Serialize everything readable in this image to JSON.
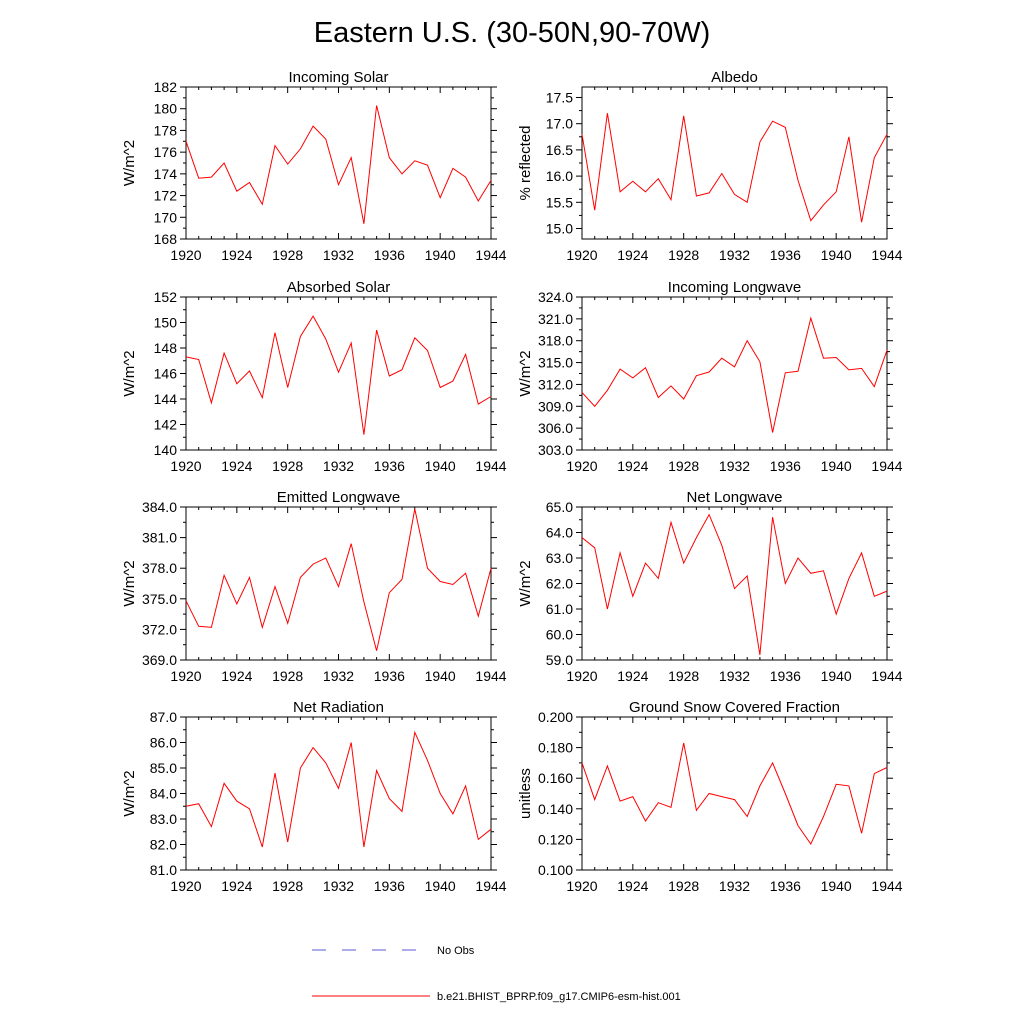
{
  "figure": {
    "title": "Eastern U.S. (30-50N,90-70W)"
  },
  "legend": {
    "items": [
      {
        "label": "No Obs",
        "color": "#5a5ad6",
        "style": "dashed"
      },
      {
        "label": "b.e21.BHIST_BPRP.f09_g17.CMIP6-esm-hist.001",
        "color": "#ff0000",
        "style": "solid"
      }
    ]
  },
  "chart_data": [
    {
      "type": "line",
      "title": "Incoming Solar",
      "ylabel": "W/m^2",
      "xlim": [
        1920,
        1944
      ],
      "ylim": [
        168,
        182
      ],
      "xticks": [
        1920,
        1924,
        1928,
        1932,
        1936,
        1940,
        1944
      ],
      "yticks": [
        "168",
        "170",
        "172",
        "174",
        "176",
        "178",
        "180",
        "182"
      ],
      "series": [
        {
          "color": "#ff0000",
          "x": [
            1920,
            1921,
            1922,
            1923,
            1924,
            1925,
            1926,
            1927,
            1928,
            1929,
            1930,
            1931,
            1932,
            1933,
            1934,
            1935,
            1936,
            1937,
            1938,
            1939,
            1940,
            1941,
            1942,
            1943,
            1944
          ],
          "values": [
            177.0,
            173.6,
            173.7,
            175.0,
            172.4,
            173.2,
            171.2,
            176.6,
            174.9,
            176.3,
            178.4,
            177.2,
            173.0,
            175.5,
            169.4,
            180.3,
            175.5,
            174.0,
            175.2,
            174.8,
            171.8,
            174.5,
            173.7,
            171.5,
            173.4
          ]
        }
      ]
    },
    {
      "type": "line",
      "title": "Albedo",
      "ylabel": "% reflected",
      "xlim": [
        1920,
        1944
      ],
      "ylim": [
        14.8,
        17.7
      ],
      "xticks": [
        1920,
        1924,
        1928,
        1932,
        1936,
        1940,
        1944
      ],
      "yticks": [
        "15.0",
        "15.5",
        "16.0",
        "16.5",
        "17.0",
        "17.5"
      ],
      "series": [
        {
          "color": "#ff0000",
          "x": [
            1920,
            1921,
            1922,
            1923,
            1924,
            1925,
            1926,
            1927,
            1928,
            1929,
            1930,
            1931,
            1932,
            1933,
            1934,
            1935,
            1936,
            1937,
            1938,
            1939,
            1940,
            1941,
            1942,
            1943,
            1944
          ],
          "values": [
            16.8,
            15.35,
            17.2,
            15.7,
            15.9,
            15.7,
            15.95,
            15.55,
            17.15,
            15.62,
            15.68,
            16.05,
            15.65,
            15.5,
            16.65,
            17.05,
            16.93,
            15.92,
            15.15,
            15.45,
            15.7,
            16.75,
            15.12,
            16.35,
            16.8
          ]
        }
      ]
    },
    {
      "type": "line",
      "title": "Absorbed Solar",
      "ylabel": "W/m^2",
      "xlim": [
        1920,
        1944
      ],
      "ylim": [
        140,
        152
      ],
      "xticks": [
        1920,
        1924,
        1928,
        1932,
        1936,
        1940,
        1944
      ],
      "yticks": [
        "140",
        "142",
        "144",
        "146",
        "148",
        "150",
        "152"
      ],
      "series": [
        {
          "color": "#ff0000",
          "x": [
            1920,
            1921,
            1922,
            1923,
            1924,
            1925,
            1926,
            1927,
            1928,
            1929,
            1930,
            1931,
            1932,
            1933,
            1934,
            1935,
            1936,
            1937,
            1938,
            1939,
            1940,
            1941,
            1942,
            1943,
            1944
          ],
          "values": [
            147.3,
            147.1,
            143.7,
            147.6,
            145.2,
            146.2,
            144.1,
            149.2,
            144.9,
            148.9,
            150.5,
            148.7,
            146.1,
            148.4,
            141.2,
            149.4,
            145.8,
            146.3,
            148.8,
            147.8,
            144.9,
            145.4,
            147.5,
            143.6,
            144.2
          ]
        }
      ]
    },
    {
      "type": "line",
      "title": "Incoming Longwave",
      "ylabel": "W/m^2",
      "xlim": [
        1920,
        1944
      ],
      "ylim": [
        303,
        324
      ],
      "xticks": [
        1920,
        1924,
        1928,
        1932,
        1936,
        1940,
        1944
      ],
      "yticks": [
        "303.0",
        "306.0",
        "309.0",
        "312.0",
        "315.0",
        "318.0",
        "321.0",
        "324.0"
      ],
      "series": [
        {
          "color": "#ff0000",
          "x": [
            1920,
            1921,
            1922,
            1923,
            1924,
            1925,
            1926,
            1927,
            1928,
            1929,
            1930,
            1931,
            1932,
            1933,
            1934,
            1935,
            1936,
            1937,
            1938,
            1939,
            1940,
            1941,
            1942,
            1943,
            1944
          ],
          "values": [
            310.9,
            309.0,
            311.2,
            314.1,
            312.9,
            314.3,
            310.2,
            311.8,
            310.0,
            313.2,
            313.7,
            315.6,
            314.4,
            318.0,
            315.1,
            305.4,
            313.6,
            313.8,
            321.1,
            315.6,
            315.7,
            314.0,
            314.2,
            311.7,
            316.7
          ]
        }
      ]
    },
    {
      "type": "line",
      "title": "Emitted Longwave",
      "ylabel": "W/m^2",
      "xlim": [
        1920,
        1944
      ],
      "ylim": [
        369,
        384
      ],
      "xticks": [
        1920,
        1924,
        1928,
        1932,
        1936,
        1940,
        1944
      ],
      "yticks": [
        "369.0",
        "372.0",
        "375.0",
        "378.0",
        "381.0",
        "384.0"
      ],
      "series": [
        {
          "color": "#ff0000",
          "x": [
            1920,
            1921,
            1922,
            1923,
            1924,
            1925,
            1926,
            1927,
            1928,
            1929,
            1930,
            1931,
            1932,
            1933,
            1934,
            1935,
            1936,
            1937,
            1938,
            1939,
            1940,
            1941,
            1942,
            1943,
            1944
          ],
          "values": [
            374.8,
            372.3,
            372.2,
            377.3,
            374.5,
            377.1,
            372.2,
            376.2,
            372.6,
            377.1,
            378.4,
            379.0,
            376.2,
            380.4,
            374.7,
            369.9,
            375.6,
            376.9,
            383.8,
            378.0,
            376.7,
            376.4,
            377.5,
            373.3,
            378.0
          ]
        }
      ]
    },
    {
      "type": "line",
      "title": "Net Longwave",
      "ylabel": "W/m^2",
      "xlim": [
        1920,
        1944
      ],
      "ylim": [
        59,
        65
      ],
      "xticks": [
        1920,
        1924,
        1928,
        1932,
        1936,
        1940,
        1944
      ],
      "yticks": [
        "59.0",
        "60.0",
        "61.0",
        "62.0",
        "63.0",
        "64.0",
        "65.0"
      ],
      "series": [
        {
          "color": "#ff0000",
          "x": [
            1920,
            1921,
            1922,
            1923,
            1924,
            1925,
            1926,
            1927,
            1928,
            1929,
            1930,
            1931,
            1932,
            1933,
            1934,
            1935,
            1936,
            1937,
            1938,
            1939,
            1940,
            1941,
            1942,
            1943,
            1944
          ],
          "values": [
            63.8,
            63.4,
            61.0,
            63.2,
            61.5,
            62.8,
            62.2,
            64.4,
            62.8,
            63.8,
            64.7,
            63.5,
            61.8,
            62.3,
            59.2,
            64.6,
            62.0,
            63.0,
            62.4,
            62.5,
            60.8,
            62.2,
            63.2,
            61.5,
            61.7
          ]
        }
      ]
    },
    {
      "type": "line",
      "title": "Net Radiation",
      "ylabel": "W/m^2",
      "xlim": [
        1920,
        1944
      ],
      "ylim": [
        81,
        87
      ],
      "xticks": [
        1920,
        1924,
        1928,
        1932,
        1936,
        1940,
        1944
      ],
      "yticks": [
        "81.0",
        "82.0",
        "83.0",
        "84.0",
        "85.0",
        "86.0",
        "87.0"
      ],
      "series": [
        {
          "color": "#ff0000",
          "x": [
            1920,
            1921,
            1922,
            1923,
            1924,
            1925,
            1926,
            1927,
            1928,
            1929,
            1930,
            1931,
            1932,
            1933,
            1934,
            1935,
            1936,
            1937,
            1938,
            1939,
            1940,
            1941,
            1942,
            1943,
            1944
          ],
          "values": [
            83.5,
            83.6,
            82.7,
            84.4,
            83.7,
            83.4,
            81.9,
            84.8,
            82.1,
            85.0,
            85.8,
            85.2,
            84.2,
            86.0,
            81.9,
            84.9,
            83.8,
            83.3,
            86.4,
            85.3,
            84.0,
            83.2,
            84.3,
            82.2,
            82.6
          ]
        }
      ]
    },
    {
      "type": "line",
      "title": "Ground Snow Covered Fraction",
      "ylabel": "unitless",
      "xlim": [
        1920,
        1944
      ],
      "ylim": [
        0.1,
        0.2
      ],
      "xticks": [
        1920,
        1924,
        1928,
        1932,
        1936,
        1940,
        1944
      ],
      "yticks": [
        "0.100",
        "0.120",
        "0.140",
        "0.160",
        "0.180",
        "0.200"
      ],
      "series": [
        {
          "color": "#ff0000",
          "x": [
            1920,
            1921,
            1922,
            1923,
            1924,
            1925,
            1926,
            1927,
            1928,
            1929,
            1930,
            1931,
            1932,
            1933,
            1934,
            1935,
            1936,
            1937,
            1938,
            1939,
            1940,
            1941,
            1942,
            1943,
            1944
          ],
          "values": [
            0.17,
            0.146,
            0.168,
            0.145,
            0.148,
            0.132,
            0.144,
            0.141,
            0.183,
            0.139,
            0.15,
            0.148,
            0.146,
            0.135,
            0.155,
            0.17,
            0.15,
            0.129,
            0.117,
            0.135,
            0.156,
            0.155,
            0.124,
            0.163,
            0.167
          ]
        }
      ]
    }
  ]
}
